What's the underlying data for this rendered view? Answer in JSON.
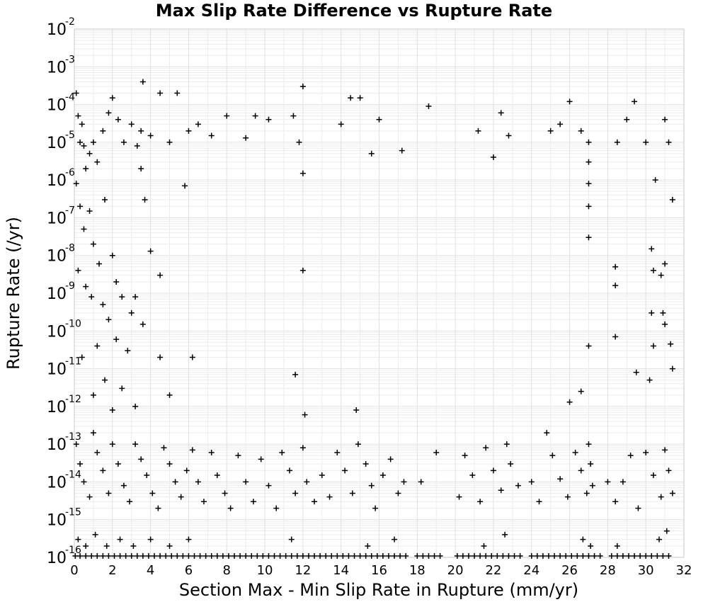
{
  "chart_data": {
    "type": "scatter",
    "title": "Max Slip Rate Difference vs Rupture Rate",
    "xlabel": "Section Max - Min Slip Rate in Rupture (mm/yr)",
    "ylabel": "Rupture Rate (/yr)",
    "xlim": [
      0,
      32
    ],
    "ylim": [
      1e-16,
      0.01
    ],
    "y_scale": "log",
    "grid": true,
    "marker": "plus",
    "marker_color": "#000000",
    "x_ticks": [
      "0",
      "2",
      "4",
      "6",
      "8",
      "10",
      "12",
      "14",
      "16",
      "18",
      "20",
      "22",
      "24",
      "26",
      "28",
      "30",
      "32"
    ],
    "y_ticks": [
      {
        "base": "10",
        "exp": "-2"
      },
      {
        "base": "10",
        "exp": "-3"
      },
      {
        "base": "10",
        "exp": "-4"
      },
      {
        "base": "10",
        "exp": "-5"
      },
      {
        "base": "10",
        "exp": "-6"
      },
      {
        "base": "10",
        "exp": "-7"
      },
      {
        "base": "10",
        "exp": "-8"
      },
      {
        "base": "10",
        "exp": "-9"
      },
      {
        "base": "10",
        "exp": "-10"
      },
      {
        "base": "10",
        "exp": "-11"
      },
      {
        "base": "10",
        "exp": "-12"
      },
      {
        "base": "10",
        "exp": "-13"
      },
      {
        "base": "10",
        "exp": "-14"
      },
      {
        "base": "10",
        "exp": "-15"
      },
      {
        "base": "10",
        "exp": "-16"
      }
    ],
    "points": [
      [
        0.1,
        0.0002
      ],
      [
        0.2,
        5e-05
      ],
      [
        0.3,
        1e-05
      ],
      [
        0.4,
        3e-05
      ],
      [
        0.5,
        8e-06
      ],
      [
        0.6,
        2e-06
      ],
      [
        0.8,
        5e-06
      ],
      [
        1.0,
        1e-05
      ],
      [
        1.2,
        3e-06
      ],
      [
        1.5,
        2e-05
      ],
      [
        1.8,
        6e-05
      ],
      [
        2.0,
        0.00015
      ],
      [
        2.3,
        4e-05
      ],
      [
        2.6,
        1e-05
      ],
      [
        3.0,
        3e-05
      ],
      [
        3.3,
        8e-06
      ],
      [
        3.5,
        2e-05
      ],
      [
        3.6,
        0.0004
      ],
      [
        4.0,
        1.5e-05
      ],
      [
        4.5,
        0.0002
      ],
      [
        5.0,
        1e-05
      ],
      [
        5.4,
        0.0002
      ],
      [
        5.8,
        7e-07
      ],
      [
        6.0,
        2e-05
      ],
      [
        6.5,
        3e-05
      ],
      [
        7.2,
        1.5e-05
      ],
      [
        8.0,
        5e-05
      ],
      [
        9.0,
        1.3e-05
      ],
      [
        9.5,
        5e-05
      ],
      [
        10.2,
        4e-05
      ],
      [
        11.5,
        5e-05
      ],
      [
        11.8,
        1e-05
      ],
      [
        12.0,
        0.0003
      ],
      [
        12.0,
        1.5e-06
      ],
      [
        14.0,
        3e-05
      ],
      [
        14.5,
        0.00015
      ],
      [
        15.0,
        0.00015
      ],
      [
        15.6,
        5e-06
      ],
      [
        16.0,
        4e-05
      ],
      [
        17.2,
        6e-06
      ],
      [
        18.6,
        9e-05
      ],
      [
        21.2,
        2e-05
      ],
      [
        22.0,
        4e-06
      ],
      [
        22.4,
        6e-05
      ],
      [
        22.8,
        1.5e-05
      ],
      [
        25.0,
        2e-05
      ],
      [
        25.5,
        3e-05
      ],
      [
        26.0,
        0.00012
      ],
      [
        26.6,
        2e-05
      ],
      [
        27.0,
        1e-05
      ],
      [
        27.0,
        3e-06
      ],
      [
        27.0,
        8e-07
      ],
      [
        28.5,
        1e-05
      ],
      [
        29.0,
        4e-05
      ],
      [
        29.4,
        0.00012
      ],
      [
        30.0,
        1e-05
      ],
      [
        30.5,
        1e-06
      ],
      [
        31.0,
        4e-05
      ],
      [
        31.2,
        1e-05
      ],
      [
        31.4,
        3e-07
      ],
      [
        0.1,
        8e-07
      ],
      [
        0.3,
        2e-07
      ],
      [
        0.5,
        5e-08
      ],
      [
        0.8,
        1.5e-07
      ],
      [
        1.0,
        2e-08
      ],
      [
        1.3,
        6e-09
      ],
      [
        1.6,
        3e-07
      ],
      [
        2.0,
        1e-08
      ],
      [
        2.2,
        2e-09
      ],
      [
        2.5,
        8e-10
      ],
      [
        3.0,
        3e-10
      ],
      [
        3.5,
        2e-06
      ],
      [
        3.7,
        3e-07
      ],
      [
        4.0,
        1.3e-08
      ],
      [
        4.5,
        3e-09
      ],
      [
        0.2,
        4e-09
      ],
      [
        0.6,
        1.5e-09
      ],
      [
        0.9,
        8e-10
      ],
      [
        1.2,
        4e-11
      ],
      [
        1.5,
        5e-10
      ],
      [
        1.8,
        2e-10
      ],
      [
        2.2,
        6e-11
      ],
      [
        2.8,
        3e-11
      ],
      [
        3.2,
        8e-10
      ],
      [
        3.6,
        1.5e-10
      ],
      [
        0.4,
        2e-11
      ],
      [
        1.0,
        2e-12
      ],
      [
        1.6,
        5e-12
      ],
      [
        2.0,
        8e-13
      ],
      [
        2.5,
        3e-12
      ],
      [
        3.2,
        1e-12
      ],
      [
        4.5,
        2e-11
      ],
      [
        5.0,
        2e-12
      ],
      [
        6.2,
        2e-11
      ],
      [
        11.6,
        7e-12
      ],
      [
        12.0,
        4e-09
      ],
      [
        12.1,
        6e-13
      ],
      [
        14.8,
        8e-13
      ],
      [
        26.0,
        1.3e-12
      ],
      [
        26.6,
        2.5e-12
      ],
      [
        27.0,
        4e-11
      ],
      [
        27.0,
        3e-08
      ],
      [
        27.0,
        2e-07
      ],
      [
        28.4,
        5e-09
      ],
      [
        28.4,
        1.6e-09
      ],
      [
        28.4,
        7e-11
      ],
      [
        29.5,
        8e-12
      ],
      [
        30.2,
        5e-12
      ],
      [
        30.3,
        1.5e-08
      ],
      [
        30.4,
        4e-09
      ],
      [
        30.3,
        3e-10
      ],
      [
        30.4,
        4e-11
      ],
      [
        30.8,
        3e-09
      ],
      [
        30.9,
        3e-10
      ],
      [
        31.0,
        1.5e-10
      ],
      [
        31.3,
        4.5e-11
      ],
      [
        31.4,
        1e-11
      ],
      [
        31.0,
        6e-09
      ],
      [
        0.1,
        1e-13
      ],
      [
        0.3,
        3e-14
      ],
      [
        0.5,
        1e-14
      ],
      [
        0.8,
        4e-15
      ],
      [
        1.0,
        2e-13
      ],
      [
        1.2,
        6e-14
      ],
      [
        1.5,
        2e-14
      ],
      [
        1.8,
        5e-15
      ],
      [
        2.0,
        1e-13
      ],
      [
        2.3,
        3e-14
      ],
      [
        2.6,
        8e-15
      ],
      [
        2.9,
        3e-15
      ],
      [
        3.2,
        1e-13
      ],
      [
        3.5,
        4e-14
      ],
      [
        3.8,
        1.5e-14
      ],
      [
        4.1,
        5e-15
      ],
      [
        4.4,
        2e-15
      ],
      [
        4.7,
        8e-14
      ],
      [
        5.0,
        3e-14
      ],
      [
        5.3,
        1e-14
      ],
      [
        5.6,
        4e-15
      ],
      [
        5.9,
        2e-14
      ],
      [
        6.2,
        7e-14
      ],
      [
        6.5,
        1e-14
      ],
      [
        6.8,
        3e-15
      ],
      [
        7.2,
        6e-14
      ],
      [
        7.5,
        1.5e-14
      ],
      [
        7.9,
        5e-15
      ],
      [
        8.2,
        2e-15
      ],
      [
        8.6,
        5e-14
      ],
      [
        9.0,
        1e-14
      ],
      [
        9.4,
        3e-15
      ],
      [
        9.8,
        4e-14
      ],
      [
        10.2,
        8e-15
      ],
      [
        10.6,
        2e-15
      ],
      [
        10.9,
        6e-14
      ],
      [
        11.3,
        2e-14
      ],
      [
        11.6,
        5e-15
      ],
      [
        12.0,
        8e-14
      ],
      [
        12.2,
        1e-14
      ],
      [
        12.6,
        3e-15
      ],
      [
        13.0,
        1.5e-14
      ],
      [
        13.4,
        4e-15
      ],
      [
        13.8,
        6e-14
      ],
      [
        14.2,
        2e-14
      ],
      [
        14.6,
        5e-15
      ],
      [
        14.9,
        1e-13
      ],
      [
        15.3,
        3e-14
      ],
      [
        15.6,
        8e-15
      ],
      [
        15.8,
        2e-15
      ],
      [
        16.2,
        1.5e-14
      ],
      [
        16.6,
        4e-14
      ],
      [
        17.0,
        5e-15
      ],
      [
        17.3,
        1e-14
      ],
      [
        18.2,
        1e-14
      ],
      [
        19.0,
        6e-14
      ],
      [
        20.2,
        4e-15
      ],
      [
        20.5,
        5e-14
      ],
      [
        20.9,
        1.5e-14
      ],
      [
        21.3,
        3e-15
      ],
      [
        21.6,
        8e-14
      ],
      [
        22.0,
        2e-14
      ],
      [
        22.4,
        6e-15
      ],
      [
        22.7,
        1e-13
      ],
      [
        22.9,
        3e-14
      ],
      [
        23.3,
        8e-15
      ],
      [
        24.0,
        1e-14
      ],
      [
        24.4,
        3e-15
      ],
      [
        24.8,
        2e-13
      ],
      [
        25.1,
        5e-14
      ],
      [
        25.5,
        1.2e-14
      ],
      [
        25.9,
        4e-15
      ],
      [
        26.3,
        6e-14
      ],
      [
        26.6,
        2e-14
      ],
      [
        26.9,
        5e-15
      ],
      [
        27.0,
        1e-13
      ],
      [
        27.1,
        3e-14
      ],
      [
        27.2,
        8e-15
      ],
      [
        28.0,
        1e-14
      ],
      [
        28.4,
        3e-15
      ],
      [
        28.8,
        1e-14
      ],
      [
        29.2,
        5e-14
      ],
      [
        29.6,
        2e-15
      ],
      [
        30.0,
        6e-14
      ],
      [
        30.4,
        1.5e-14
      ],
      [
        30.8,
        4e-15
      ],
      [
        31.0,
        7e-14
      ],
      [
        31.2,
        2e-14
      ],
      [
        31.4,
        5e-15
      ],
      [
        0.2,
        3e-16
      ],
      [
        0.6,
        2e-16
      ],
      [
        1.1,
        4e-16
      ],
      [
        1.7,
        2e-16
      ],
      [
        2.4,
        3e-16
      ],
      [
        3.1,
        2e-16
      ],
      [
        4.0,
        3e-16
      ],
      [
        5.0,
        2e-16
      ],
      [
        6.0,
        3e-16
      ],
      [
        11.4,
        3e-16
      ],
      [
        15.4,
        2e-16
      ],
      [
        16.8,
        3e-16
      ],
      [
        21.5,
        2e-16
      ],
      [
        22.6,
        4e-16
      ],
      [
        26.7,
        3e-16
      ],
      [
        27.1,
        2e-16
      ],
      [
        28.5,
        2e-16
      ],
      [
        30.7,
        3e-16
      ],
      [
        31.1,
        5e-16
      ],
      [
        0.05,
        1e-16
      ],
      [
        0.3,
        1e-16
      ],
      [
        0.6,
        1e-16
      ],
      [
        0.9,
        1e-16
      ],
      [
        1.2,
        1e-16
      ],
      [
        1.5,
        1e-16
      ],
      [
        1.8,
        1e-16
      ],
      [
        2.1,
        1e-16
      ],
      [
        2.4,
        1e-16
      ],
      [
        2.7,
        1e-16
      ],
      [
        3.0,
        1e-16
      ],
      [
        3.3,
        1e-16
      ],
      [
        3.6,
        1e-16
      ],
      [
        3.9,
        1e-16
      ],
      [
        4.2,
        1e-16
      ],
      [
        4.5,
        1e-16
      ],
      [
        4.8,
        1e-16
      ],
      [
        5.1,
        1e-16
      ],
      [
        5.4,
        1e-16
      ],
      [
        5.7,
        1e-16
      ],
      [
        6.0,
        1e-16
      ],
      [
        6.3,
        1e-16
      ],
      [
        6.6,
        1e-16
      ],
      [
        6.9,
        1e-16
      ],
      [
        7.2,
        1e-16
      ],
      [
        7.5,
        1e-16
      ],
      [
        7.8,
        1e-16
      ],
      [
        8.1,
        1e-16
      ],
      [
        8.4,
        1e-16
      ],
      [
        8.7,
        1e-16
      ],
      [
        9.0,
        1e-16
      ],
      [
        9.3,
        1e-16
      ],
      [
        9.6,
        1e-16
      ],
      [
        9.9,
        1e-16
      ],
      [
        10.2,
        1e-16
      ],
      [
        10.5,
        1e-16
      ],
      [
        10.8,
        1e-16
      ],
      [
        11.1,
        1e-16
      ],
      [
        11.4,
        1e-16
      ],
      [
        11.7,
        1e-16
      ],
      [
        12.0,
        1e-16
      ],
      [
        12.3,
        1e-16
      ],
      [
        12.6,
        1e-16
      ],
      [
        12.9,
        1e-16
      ],
      [
        13.2,
        1e-16
      ],
      [
        13.5,
        1e-16
      ],
      [
        13.8,
        1e-16
      ],
      [
        14.1,
        1e-16
      ],
      [
        14.4,
        1e-16
      ],
      [
        14.7,
        1e-16
      ],
      [
        15.0,
        1e-16
      ],
      [
        15.3,
        1e-16
      ],
      [
        15.6,
        1e-16
      ],
      [
        15.9,
        1e-16
      ],
      [
        16.2,
        1e-16
      ],
      [
        16.5,
        1e-16
      ],
      [
        16.8,
        1e-16
      ],
      [
        17.1,
        1e-16
      ],
      [
        17.4,
        1e-16
      ],
      [
        18.0,
        1e-16
      ],
      [
        18.3,
        1e-16
      ],
      [
        18.6,
        1e-16
      ],
      [
        18.9,
        1e-16
      ],
      [
        19.2,
        1e-16
      ],
      [
        20.1,
        1e-16
      ],
      [
        20.4,
        1e-16
      ],
      [
        20.7,
        1e-16
      ],
      [
        21.0,
        1e-16
      ],
      [
        21.3,
        1e-16
      ],
      [
        21.6,
        1e-16
      ],
      [
        21.9,
        1e-16
      ],
      [
        22.2,
        1e-16
      ],
      [
        22.5,
        1e-16
      ],
      [
        22.8,
        1e-16
      ],
      [
        23.1,
        1e-16
      ],
      [
        23.4,
        1e-16
      ],
      [
        24.0,
        1e-16
      ],
      [
        24.3,
        1e-16
      ],
      [
        24.6,
        1e-16
      ],
      [
        24.9,
        1e-16
      ],
      [
        25.2,
        1e-16
      ],
      [
        25.5,
        1e-16
      ],
      [
        25.8,
        1e-16
      ],
      [
        26.1,
        1e-16
      ],
      [
        26.4,
        1e-16
      ],
      [
        26.7,
        1e-16
      ],
      [
        27.0,
        1e-16
      ],
      [
        27.3,
        1e-16
      ],
      [
        27.6,
        1e-16
      ],
      [
        28.2,
        1e-16
      ],
      [
        28.5,
        1e-16
      ],
      [
        28.8,
        1e-16
      ],
      [
        29.1,
        1e-16
      ],
      [
        29.4,
        1e-16
      ],
      [
        29.7,
        1e-16
      ],
      [
        30.0,
        1e-16
      ],
      [
        30.3,
        1e-16
      ],
      [
        30.6,
        1e-16
      ],
      [
        30.9,
        1e-16
      ],
      [
        31.2,
        1e-16
      ]
    ]
  }
}
